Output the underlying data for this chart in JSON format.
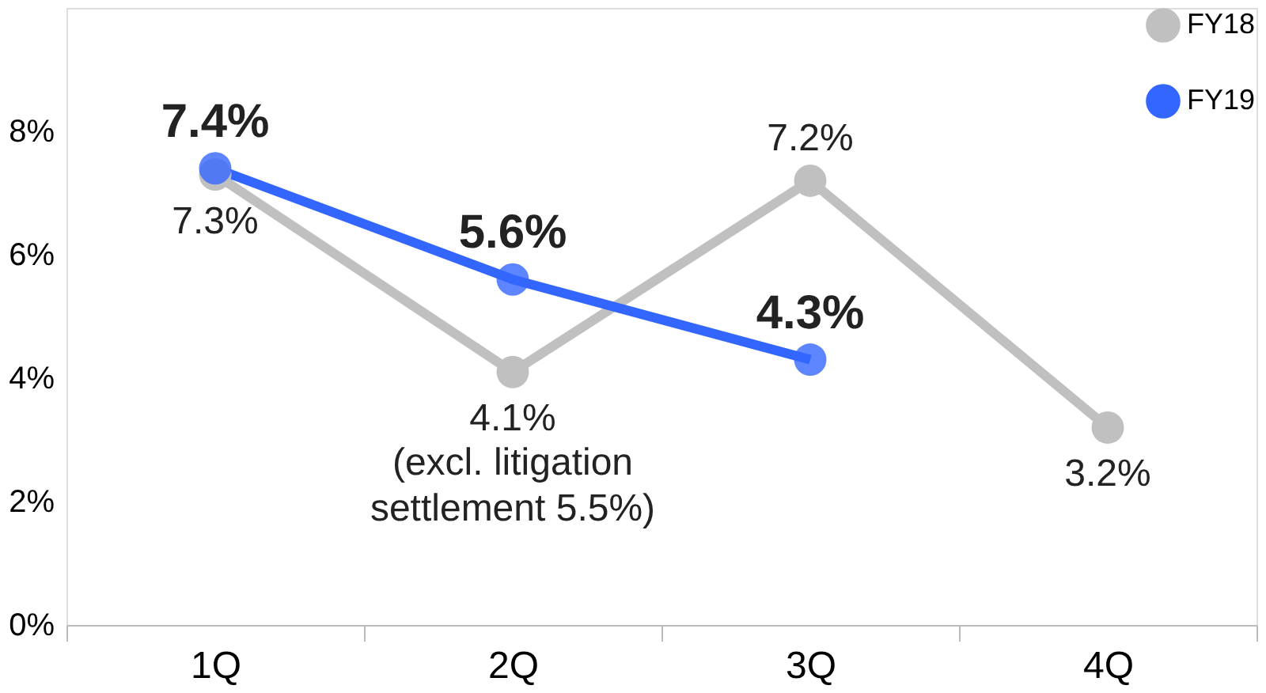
{
  "chart_data": {
    "type": "line",
    "categories": [
      "1Q",
      "2Q",
      "3Q",
      "4Q"
    ],
    "series": [
      {
        "name": "FY18",
        "color": "#c0c0c0",
        "values": [
          7.3,
          4.1,
          7.2,
          3.2
        ],
        "value_labels": [
          "7.3%",
          "4.1%",
          "7.2%",
          "3.2%"
        ]
      },
      {
        "name": "FY19",
        "color": "#3366ff",
        "values": [
          7.4,
          5.6,
          4.3,
          null
        ],
        "value_labels": [
          "7.4%",
          "5.6%",
          "4.3%",
          null
        ]
      }
    ],
    "annotations": [
      {
        "text": "(excl. litigation settlement 5.5%)",
        "x": "2Q",
        "y": 4.1
      }
    ],
    "ylim": [
      0,
      10
    ],
    "yticks": [
      {
        "value": 0,
        "label": "0%"
      },
      {
        "value": 2,
        "label": "2%"
      },
      {
        "value": 4,
        "label": "4%"
      },
      {
        "value": 6,
        "label": "6%"
      },
      {
        "value": 8,
        "label": "8%"
      }
    ],
    "grid": false,
    "legend": "top right",
    "marker": "circle",
    "line_style": "solid"
  }
}
